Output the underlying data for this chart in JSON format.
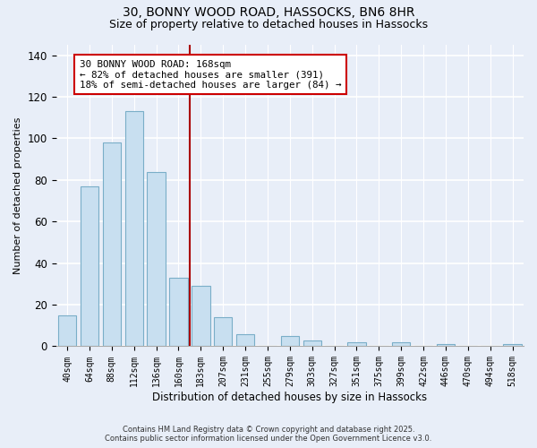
{
  "title1": "30, BONNY WOOD ROAD, HASSOCKS, BN6 8HR",
  "title2": "Size of property relative to detached houses in Hassocks",
  "xlabel": "Distribution of detached houses by size in Hassocks",
  "ylabel": "Number of detached properties",
  "bar_labels": [
    "40sqm",
    "64sqm",
    "88sqm",
    "112sqm",
    "136sqm",
    "160sqm",
    "183sqm",
    "207sqm",
    "231sqm",
    "255sqm",
    "279sqm",
    "303sqm",
    "327sqm",
    "351sqm",
    "375sqm",
    "399sqm",
    "422sqm",
    "446sqm",
    "470sqm",
    "494sqm",
    "518sqm"
  ],
  "bar_values": [
    15,
    77,
    98,
    113,
    84,
    33,
    29,
    14,
    6,
    0,
    5,
    3,
    0,
    2,
    0,
    2,
    0,
    1,
    0,
    0,
    1
  ],
  "bar_color": "#c8dff0",
  "bar_edge_color": "#7aaec8",
  "vline_x": 5.5,
  "vline_color": "#aa0000",
  "annotation_title": "30 BONNY WOOD ROAD: 168sqm",
  "annotation_line1": "← 82% of detached houses are smaller (391)",
  "annotation_line2": "18% of semi-detached houses are larger (84) →",
  "annotation_box_color": "#ffffff",
  "annotation_box_edge": "#cc0000",
  "ylim": [
    0,
    145
  ],
  "footnote1": "Contains HM Land Registry data © Crown copyright and database right 2025.",
  "footnote2": "Contains public sector information licensed under the Open Government Licence v3.0.",
  "background_color": "#e8eef8",
  "title_fontsize": 10,
  "subtitle_fontsize": 9
}
